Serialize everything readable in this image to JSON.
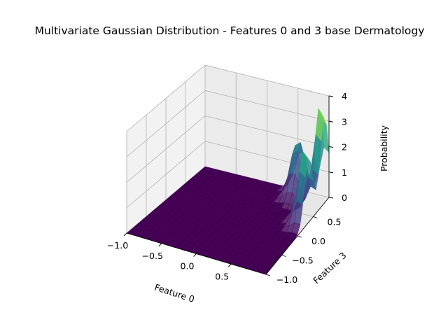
{
  "chart_data": {
    "type": "surface3d",
    "title": "Multivariate Gaussian Distribution - Features 0 and 3 base Dermatology",
    "xlabel": "Feature 0",
    "ylabel": "Feature 3",
    "zlabel": "Probability",
    "xlim": [
      -1.0,
      1.0
    ],
    "ylim": [
      -1.0,
      1.0
    ],
    "zlim": [
      0,
      4
    ],
    "x_ticks": [
      "−1.0",
      "−0.5",
      "0.0",
      "0.5"
    ],
    "y_ticks": [
      "−1.0",
      "−0.5",
      "0.0",
      "0.5"
    ],
    "z_ticks": [
      "0",
      "1",
      "2",
      "3",
      "4"
    ],
    "x_tick_values": [
      -1.0,
      -0.5,
      0.0,
      0.5
    ],
    "y_tick_values": [
      -1.0,
      -0.5,
      0.0,
      0.5
    ],
    "z_tick_values": [
      0,
      1,
      2,
      3,
      4
    ],
    "colormap": "viridis",
    "grid": true,
    "peaks": [
      {
        "x": 0.95,
        "y": 0.35,
        "z": 3.0
      },
      {
        "x": 0.95,
        "y": 0.85,
        "z": 4.0
      },
      {
        "x": 0.55,
        "y": 0.9,
        "z": 2.2
      }
    ]
  }
}
